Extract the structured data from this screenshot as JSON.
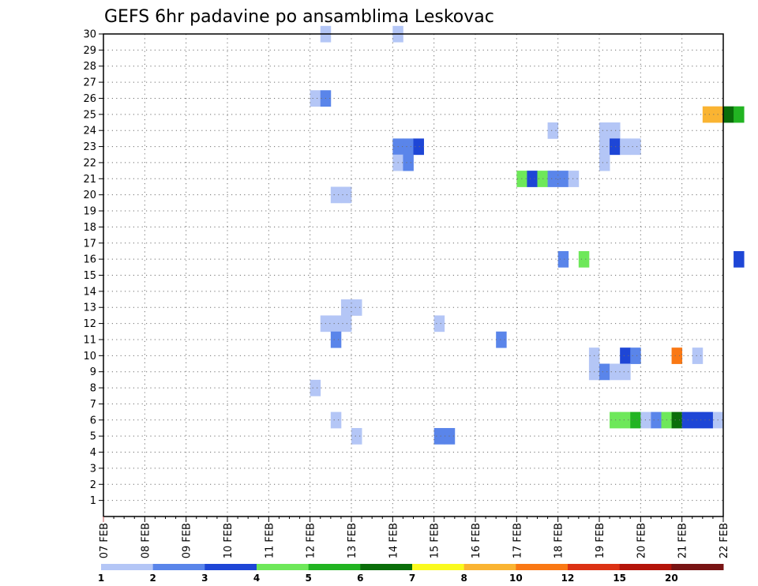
{
  "chart_data": {
    "type": "heatmap",
    "title": "GEFS 6hr padavine po ansamblima Leskovac",
    "xlabel": "",
    "ylabel": "",
    "x_ticks": [
      "07 FEB",
      "08 FEB",
      "09 FEB",
      "10 FEB",
      "11 FEB",
      "12 FEB",
      "13 FEB",
      "14 FEB",
      "15 FEB",
      "16 FEB",
      "17 FEB",
      "18 FEB",
      "19 FEB",
      "20 FEB",
      "21 FEB",
      "22 FEB"
    ],
    "y_ticks": [
      "1",
      "2",
      "3",
      "4",
      "5",
      "6",
      "7",
      "8",
      "9",
      "10",
      "11",
      "12",
      "13",
      "14",
      "15",
      "16",
      "17",
      "18",
      "19",
      "20",
      "21",
      "22",
      "23",
      "24",
      "25",
      "26",
      "27",
      "28",
      "29",
      "30"
    ],
    "time_step_hours": 6,
    "xlim_days": [
      0,
      15
    ],
    "ylim": [
      0,
      30
    ],
    "grid": true,
    "legend": {
      "position": "bottom",
      "labels": [
        "1",
        "2",
        "3",
        "4",
        "5",
        "6",
        "7",
        "8",
        "10",
        "12",
        "15",
        "20"
      ],
      "colors": [
        "#b4c6f6",
        "#5a85ea",
        "#1e46d6",
        "#6ee85a",
        "#22b422",
        "#0a6e0a",
        "#fafa1e",
        "#fab432",
        "#fa7814",
        "#dc3214",
        "#b4140a",
        "#781414"
      ]
    },
    "levels": {
      "1": "#b4c6f6",
      "2": "#5a85ea",
      "3": "#1e46d6",
      "4": "#6ee85a",
      "5": "#22b422",
      "6": "#0a6e0a",
      "8": "#fab432",
      "10": "#fa7814"
    },
    "cells": [
      {
        "member": 30,
        "t": [
          21
        ],
        "level": 1
      },
      {
        "member": 30,
        "t": [
          28
        ],
        "level": 1
      },
      {
        "member": 26,
        "t": [
          20
        ],
        "level": 1
      },
      {
        "member": 26,
        "t": [
          21
        ],
        "level": 2
      },
      {
        "member": 25,
        "t": [
          58,
          59
        ],
        "level": 8
      },
      {
        "member": 25,
        "t": [
          60
        ],
        "level": 6
      },
      {
        "member": 25,
        "t": [
          61
        ],
        "level": 5
      },
      {
        "member": 24,
        "t": [
          43
        ],
        "level": 1
      },
      {
        "member": 24,
        "t": [
          48,
          49
        ],
        "level": 1
      },
      {
        "member": 23,
        "t": [
          28,
          29
        ],
        "level": 2
      },
      {
        "member": 23,
        "t": [
          30
        ],
        "level": 3
      },
      {
        "member": 23,
        "t": [
          48
        ],
        "level": 1
      },
      {
        "member": 23,
        "t": [
          49
        ],
        "level": 3
      },
      {
        "member": 23,
        "t": [
          50,
          51
        ],
        "level": 1
      },
      {
        "member": 22,
        "t": [
          28
        ],
        "level": 1
      },
      {
        "member": 22,
        "t": [
          29
        ],
        "level": 2
      },
      {
        "member": 22,
        "t": [
          48
        ],
        "level": 1
      },
      {
        "member": 21,
        "t": [
          40
        ],
        "level": 4
      },
      {
        "member": 21,
        "t": [
          41
        ],
        "level": 3
      },
      {
        "member": 21,
        "t": [
          42
        ],
        "level": 4
      },
      {
        "member": 21,
        "t": [
          43,
          44
        ],
        "level": 2
      },
      {
        "member": 21,
        "t": [
          45
        ],
        "level": 1
      },
      {
        "member": 20,
        "t": [
          22,
          23
        ],
        "level": 1
      },
      {
        "member": 16,
        "t": [
          44
        ],
        "level": 2
      },
      {
        "member": 16,
        "t": [
          46
        ],
        "level": 4
      },
      {
        "member": 16,
        "t": [
          61
        ],
        "level": 3
      },
      {
        "member": 13,
        "t": [
          23,
          24
        ],
        "level": 1
      },
      {
        "member": 12,
        "t": [
          21,
          22,
          23
        ],
        "level": 1
      },
      {
        "member": 12,
        "t": [
          32
        ],
        "level": 1
      },
      {
        "member": 11,
        "t": [
          22
        ],
        "level": 2
      },
      {
        "member": 11,
        "t": [
          38
        ],
        "level": 2
      },
      {
        "member": 10,
        "t": [
          47
        ],
        "level": 1
      },
      {
        "member": 10,
        "t": [
          50
        ],
        "level": 3
      },
      {
        "member": 10,
        "t": [
          51
        ],
        "level": 2
      },
      {
        "member": 10,
        "t": [
          55
        ],
        "level": 10
      },
      {
        "member": 10,
        "t": [
          57
        ],
        "level": 1
      },
      {
        "member": 9,
        "t": [
          47
        ],
        "level": 1
      },
      {
        "member": 9,
        "t": [
          48
        ],
        "level": 2
      },
      {
        "member": 9,
        "t": [
          49,
          50
        ],
        "level": 1
      },
      {
        "member": 8,
        "t": [
          20
        ],
        "level": 1
      },
      {
        "member": 6,
        "t": [
          22
        ],
        "level": 1
      },
      {
        "member": 6,
        "t": [
          49,
          50
        ],
        "level": 4
      },
      {
        "member": 6,
        "t": [
          51
        ],
        "level": 5
      },
      {
        "member": 6,
        "t": [
          52
        ],
        "level": 1
      },
      {
        "member": 6,
        "t": [
          53
        ],
        "level": 2
      },
      {
        "member": 6,
        "t": [
          54
        ],
        "level": 4
      },
      {
        "member": 6,
        "t": [
          55
        ],
        "level": 6
      },
      {
        "member": 6,
        "t": [
          56,
          57,
          58
        ],
        "level": 3
      },
      {
        "member": 6,
        "t": [
          59
        ],
        "level": 1
      },
      {
        "member": 5,
        "t": [
          24
        ],
        "level": 1
      },
      {
        "member": 5,
        "t": [
          32,
          33
        ],
        "level": 2
      }
    ]
  }
}
